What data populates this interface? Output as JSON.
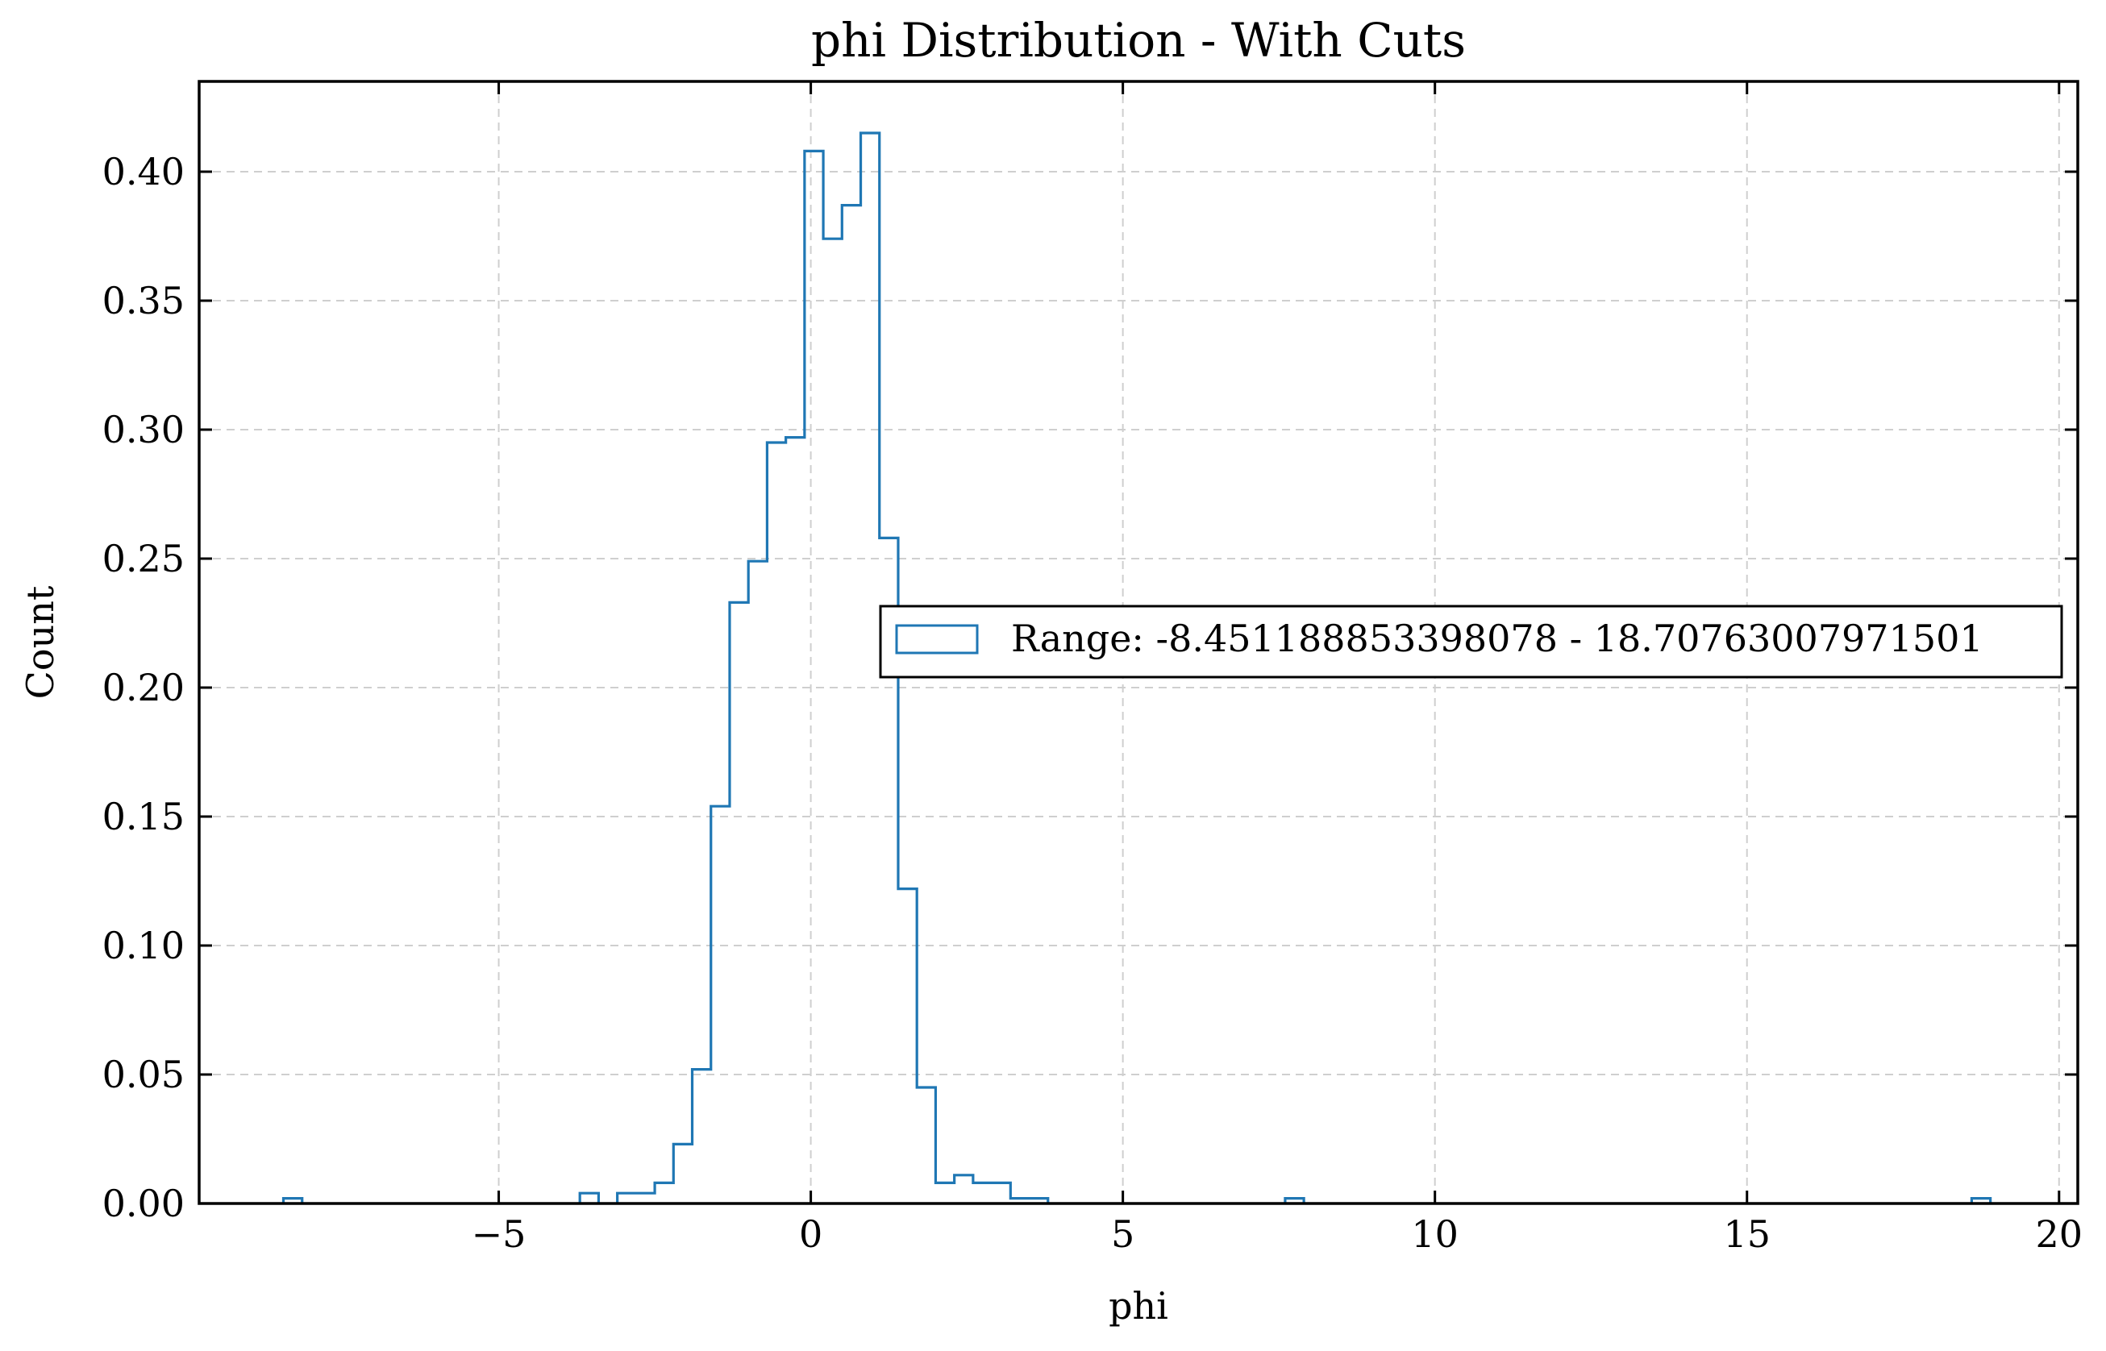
{
  "chart_data": {
    "type": "histogram",
    "title": "phi Distribution - With Cuts",
    "xlabel": "phi",
    "ylabel": "Count",
    "xlim": [
      -9.8,
      20.3
    ],
    "ylim": [
      0,
      0.435
    ],
    "xticks": [
      -5,
      0,
      5,
      10,
      15,
      20
    ],
    "xtick_labels": [
      "−5",
      "0",
      "5",
      "10",
      "15",
      "20"
    ],
    "yticks": [
      0,
      0.05,
      0.1,
      0.15,
      0.2,
      0.25,
      0.3,
      0.35,
      0.4
    ],
    "ytick_labels": [
      "0.00",
      "0.05",
      "0.10",
      "0.15",
      "0.20",
      "0.25",
      "0.30",
      "0.35",
      "0.40"
    ],
    "grid": true,
    "legend": {
      "placement": "center-right",
      "entries": [
        "Range: -8.451188853398078 - 18.70763007971501"
      ]
    },
    "series": [
      {
        "style": "step",
        "color": "#1f77b4",
        "bins": [
          {
            "x0": -8.45,
            "x1": -8.15,
            "y": 0.002
          },
          {
            "x0": -3.7,
            "x1": -3.4,
            "y": 0.004
          },
          {
            "x0": -3.1,
            "x1": -2.5,
            "y": 0.004
          },
          {
            "x0": -2.5,
            "x1": -2.2,
            "y": 0.008
          },
          {
            "x0": -2.2,
            "x1": -1.9,
            "y": 0.023
          },
          {
            "x0": -1.9,
            "x1": -1.6,
            "y": 0.052
          },
          {
            "x0": -1.6,
            "x1": -1.3,
            "y": 0.154
          },
          {
            "x0": -1.3,
            "x1": -1.0,
            "y": 0.233
          },
          {
            "x0": -1.0,
            "x1": -0.7,
            "y": 0.249
          },
          {
            "x0": -0.7,
            "x1": -0.4,
            "y": 0.295
          },
          {
            "x0": -0.4,
            "x1": -0.1,
            "y": 0.297
          },
          {
            "x0": -0.1,
            "x1": 0.2,
            "y": 0.408
          },
          {
            "x0": 0.2,
            "x1": 0.5,
            "y": 0.374
          },
          {
            "x0": 0.5,
            "x1": 0.8,
            "y": 0.387
          },
          {
            "x0": 0.8,
            "x1": 1.1,
            "y": 0.415
          },
          {
            "x0": 1.1,
            "x1": 1.4,
            "y": 0.258
          },
          {
            "x0": 1.4,
            "x1": 1.7,
            "y": 0.122
          },
          {
            "x0": 1.7,
            "x1": 2.0,
            "y": 0.045
          },
          {
            "x0": 2.0,
            "x1": 2.3,
            "y": 0.008
          },
          {
            "x0": 2.3,
            "x1": 2.6,
            "y": 0.011
          },
          {
            "x0": 2.6,
            "x1": 3.2,
            "y": 0.008
          },
          {
            "x0": 3.2,
            "x1": 3.8,
            "y": 0.002
          },
          {
            "x0": 7.6,
            "x1": 7.9,
            "y": 0.002
          },
          {
            "x0": 18.6,
            "x1": 18.9,
            "y": 0.002
          }
        ]
      }
    ]
  }
}
